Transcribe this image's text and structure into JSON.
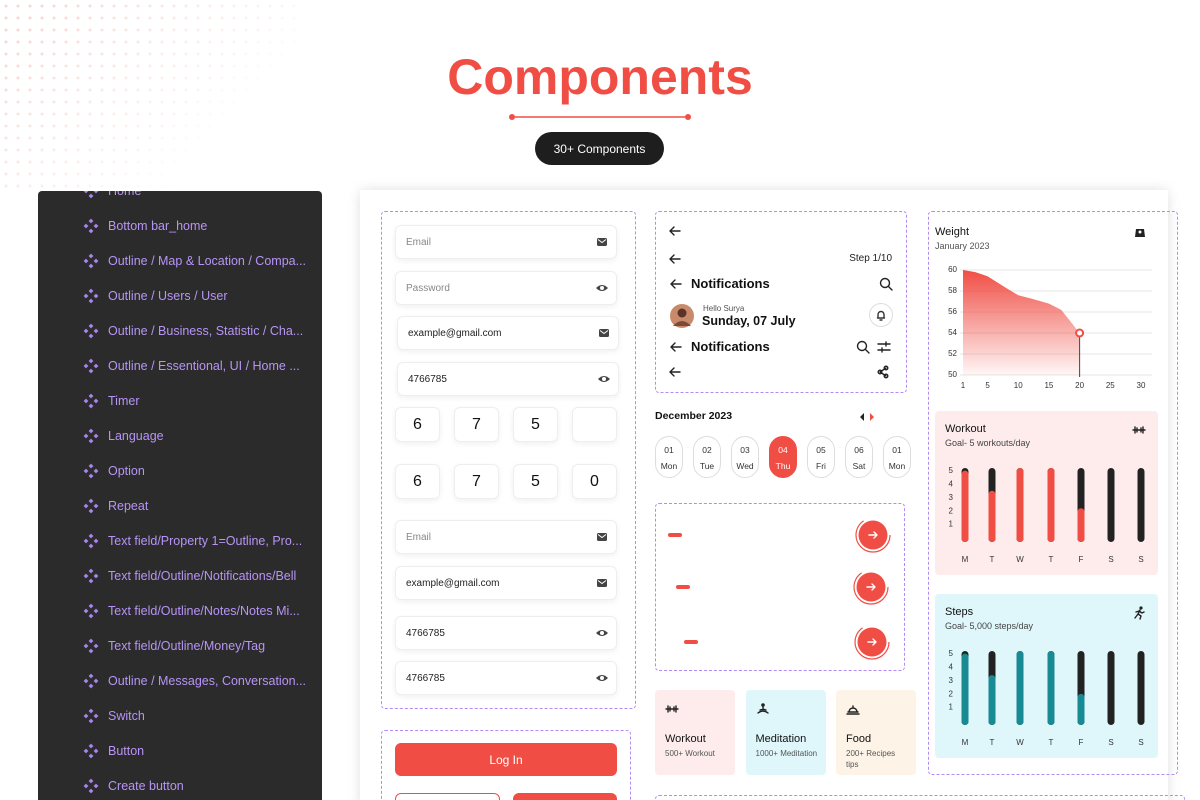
{
  "header": {
    "title": "Components",
    "badge": "30+ Components"
  },
  "sidebar": {
    "items": [
      "Home",
      "Bottom bar_home",
      "Outline / Map & Location / Compa...",
      "Outline / Users / User",
      "Outline / Business, Statistic / Cha...",
      "Outline / Essentional, UI / Home ...",
      "Timer",
      "Language",
      "Option",
      "Repeat",
      "Text field/Property 1=Outline, Pro...",
      "Text field/Outline/Notifications/Bell",
      "Text field/Outline/Notes/Notes Mi...",
      "Text field/Outline/Money/Tag",
      "Outline / Messages, Conversation...",
      "Switch",
      "Button",
      "Create button"
    ]
  },
  "form": {
    "fields": [
      {
        "text": "Email",
        "icon": "mail",
        "filled": false
      },
      {
        "text": "Password",
        "icon": "eye",
        "filled": false
      },
      {
        "text": "example@gmail.com",
        "icon": "mail",
        "filled": true
      },
      {
        "text": "4766785",
        "icon": "eye",
        "filled": true
      },
      {
        "text": "Email",
        "icon": "mail",
        "filled": false
      },
      {
        "text": "example@gmail.com",
        "icon": "mail",
        "filled": true
      },
      {
        "text": "4766785",
        "icon": "eye",
        "filled": true
      },
      {
        "text": "4766785",
        "icon": "eye",
        "filled": true
      }
    ],
    "otp": [
      [
        "6",
        "7",
        "5"
      ],
      [
        "6",
        "7",
        "5",
        "0"
      ]
    ],
    "login": "Log In"
  },
  "nav": {
    "step": "Step 1/10",
    "title1": "Notifications",
    "greeting": "Hello Surya",
    "date": "Sunday, 07 July",
    "title2": "Notifications"
  },
  "calendar": {
    "month": "December 2023",
    "active": 3,
    "days": [
      {
        "num": "01",
        "day": "Mon"
      },
      {
        "num": "02",
        "day": "Tue"
      },
      {
        "num": "03",
        "day": "Wed"
      },
      {
        "num": "04",
        "day": "Thu"
      },
      {
        "num": "05",
        "day": "Fri"
      },
      {
        "num": "06",
        "day": "Sat"
      },
      {
        "num": "01",
        "day": "Mon"
      }
    ]
  },
  "categories": [
    {
      "title": "Workout",
      "subtitle": "500+ Workout",
      "color": "#fdeceb"
    },
    {
      "title": "Meditation",
      "subtitle": "1000+ Meditation",
      "color": "#dff7fb"
    },
    {
      "title": "Food",
      "subtitle": "200+ Recipes tips",
      "color": "#fdf3e6"
    }
  ],
  "weight": {
    "title": "Weight",
    "subtitle": "January 2023",
    "x": [
      1,
      3,
      5,
      8,
      10,
      12,
      15,
      17,
      20
    ],
    "values": [
      60,
      59.8,
      59.4,
      58.3,
      57.6,
      57.3,
      56.8,
      56.2,
      54
    ],
    "xlim": [
      1,
      30
    ],
    "ylim": [
      50,
      60
    ],
    "xticks": [
      1,
      5,
      10,
      15,
      20,
      25,
      30
    ],
    "yticks": [
      50,
      52,
      54,
      56,
      58,
      60
    ],
    "color": "#f04e45"
  },
  "workout": {
    "title": "Workout",
    "subtitle": "Goal- 5 workouts/day",
    "categories": [
      "M",
      "T",
      "W",
      "T",
      "F",
      "S",
      "S"
    ],
    "values": [
      4.8,
      3.3,
      5,
      5,
      2,
      0,
      0
    ],
    "ylim": [
      0,
      5
    ],
    "yticks": [
      1,
      2,
      3,
      4,
      5
    ],
    "color": "#f04e45",
    "background": "#fdeceb"
  },
  "steps": {
    "title": "Steps",
    "subtitle": "Goal- 5,000 steps/day",
    "categories": [
      "M",
      "T",
      "W",
      "T",
      "F",
      "S",
      "S"
    ],
    "values": [
      4.8,
      3.2,
      5,
      5,
      1.8,
      0,
      0
    ],
    "ylim": [
      0,
      5
    ],
    "yticks": [
      1,
      2,
      3,
      4,
      5
    ],
    "color": "#178a94",
    "background": "#dff7fb"
  }
}
